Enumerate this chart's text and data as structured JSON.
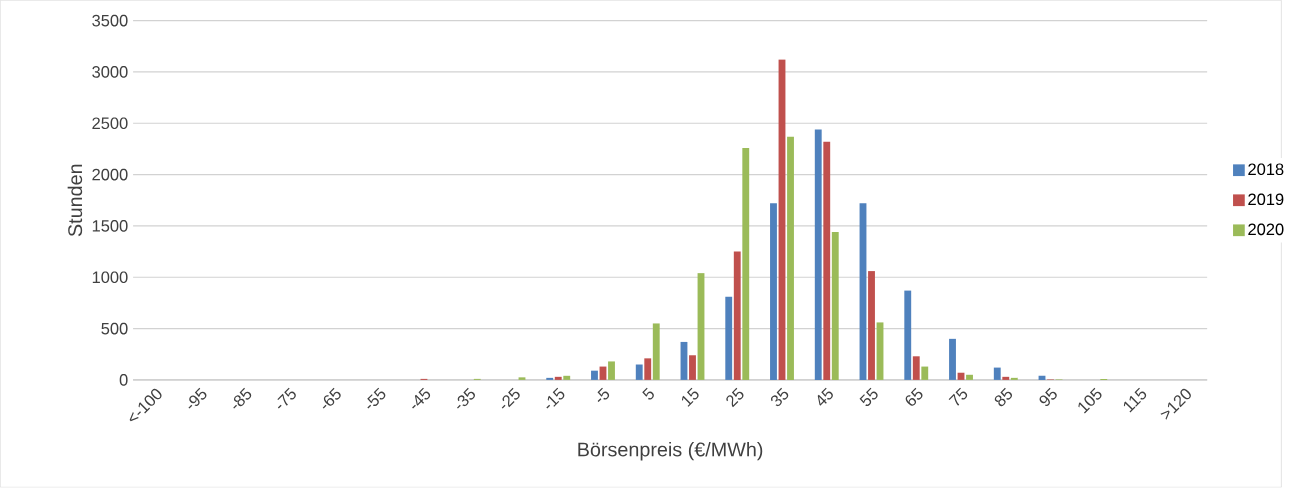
{
  "chart_data": {
    "type": "bar",
    "xlabel": "Börsenpreis (€/MWh)",
    "ylabel": "Stunden",
    "categories": [
      "<-100",
      "-95",
      "-85",
      "-75",
      "-65",
      "-55",
      "-45",
      "-35",
      "-25",
      "-15",
      "-5",
      "5",
      "15",
      "25",
      "35",
      "45",
      "55",
      "65",
      "75",
      "85",
      "95",
      "105",
      "115",
      ">120"
    ],
    "series": [
      {
        "name": "2018",
        "color": "#4f81bd",
        "values": [
          0,
          0,
          0,
          0,
          0,
          0,
          0,
          0,
          0,
          20,
          90,
          150,
          370,
          810,
          1720,
          2440,
          1720,
          870,
          400,
          120,
          40,
          0,
          0,
          0
        ]
      },
      {
        "name": "2019",
        "color": "#c0504d",
        "values": [
          0,
          0,
          0,
          0,
          0,
          0,
          10,
          0,
          0,
          30,
          130,
          210,
          240,
          1250,
          3120,
          2320,
          1060,
          230,
          70,
          30,
          5,
          0,
          0,
          0
        ]
      },
      {
        "name": "2020",
        "color": "#9bbb59",
        "values": [
          0,
          0,
          0,
          0,
          0,
          0,
          0,
          10,
          25,
          40,
          180,
          550,
          1040,
          2260,
          2370,
          1440,
          560,
          130,
          50,
          20,
          5,
          10,
          0,
          0
        ]
      }
    ],
    "ylim": [
      0,
      3500
    ],
    "yticks": [
      0,
      500,
      1000,
      1500,
      2000,
      2500,
      3000,
      3500
    ],
    "grid": "y",
    "legend": "right"
  }
}
